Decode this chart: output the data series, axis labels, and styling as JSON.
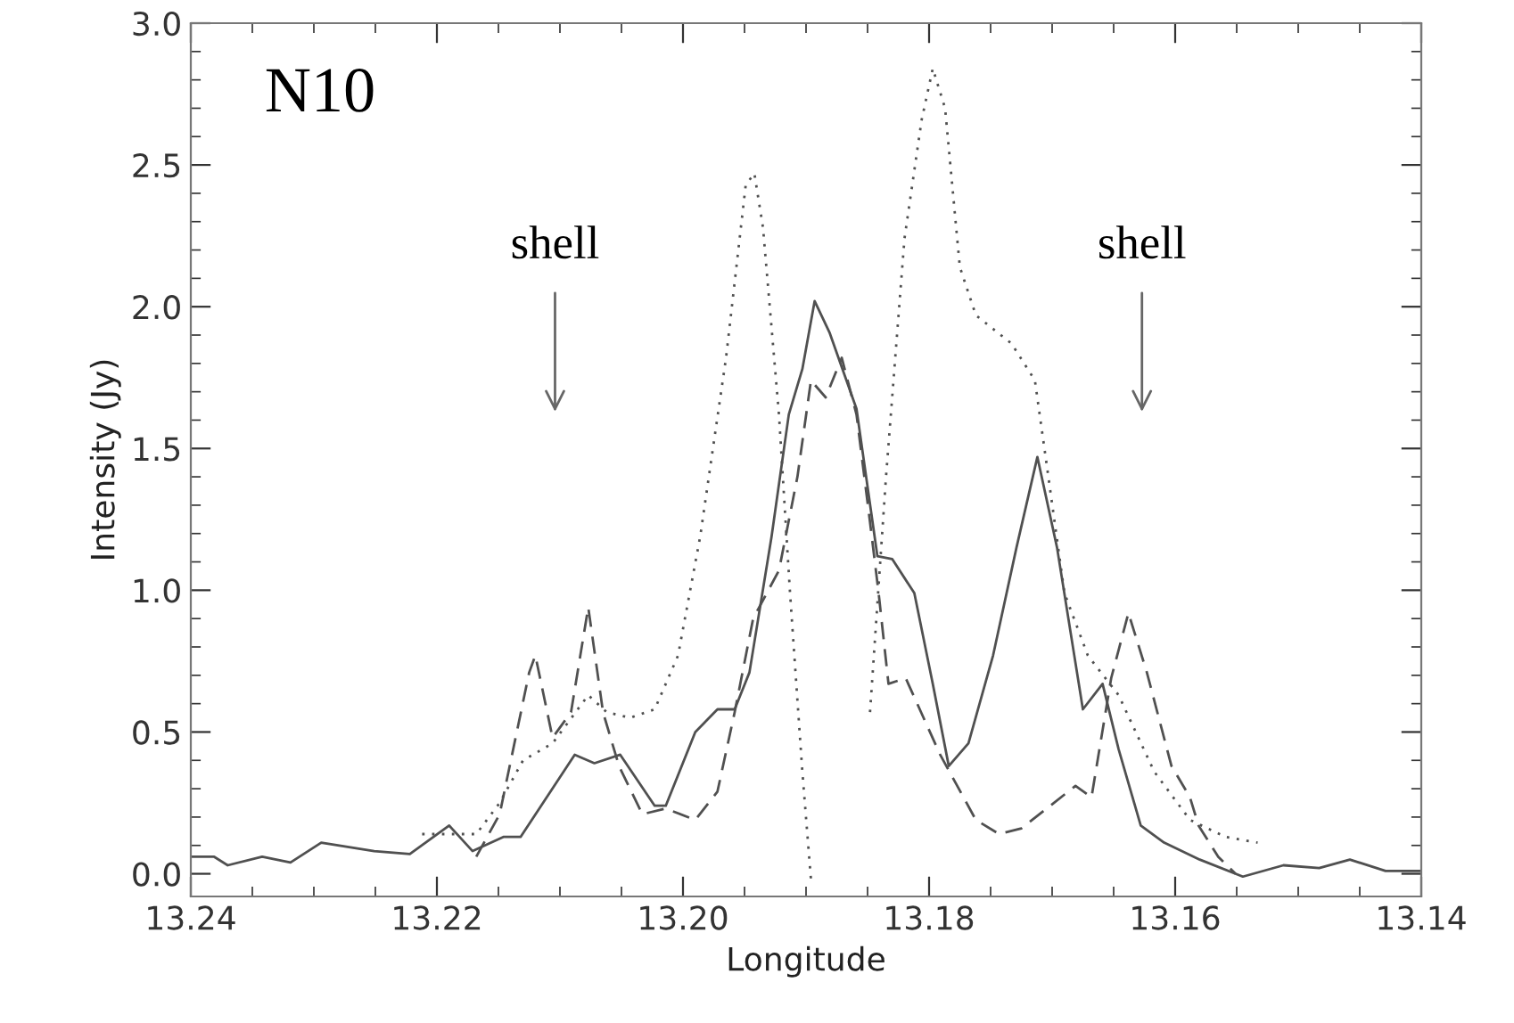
{
  "chart_data": {
    "type": "line",
    "xlabel": "Longitude",
    "ylabel": "Intensity (Jy)",
    "xlim": [
      13.24,
      13.14
    ],
    "ylim": [
      -0.08,
      3.0
    ],
    "xticks": [
      13.24,
      13.22,
      {
        "value": 13.2,
        "label": "13.20"
      },
      13.18,
      13.16,
      13.14
    ],
    "yticks": [
      {
        "value": 0,
        "label": "0.0"
      },
      0.5,
      {
        "value": 1,
        "label": "1.0"
      },
      1.5,
      {
        "value": 2,
        "label": "2.0"
      },
      2.5,
      {
        "value": 3,
        "label": "3.0"
      }
    ],
    "grid": false,
    "legend": false,
    "marker": "none",
    "annotations": [
      "N10",
      "shell",
      "shell"
    ],
    "series": [
      {
        "color": "#505050",
        "line_style": "solid",
        "x": [
          13.24,
          13.2381,
          13.237,
          13.2342,
          13.2319,
          13.2294,
          13.2251,
          13.2222,
          13.219,
          13.2171,
          13.2146,
          13.2132,
          13.2088,
          13.2072,
          13.2051,
          13.2023,
          13.2014,
          13.199,
          13.1972,
          13.1958,
          13.1946,
          13.1928,
          13.1914,
          13.1903,
          13.1893,
          13.1881,
          13.1859,
          13.1842,
          13.183,
          13.1812,
          13.1797,
          13.1784,
          13.1768,
          13.1748,
          13.1729,
          13.1712,
          13.1696,
          13.1675,
          13.1659,
          13.1646,
          13.1628,
          13.1609,
          13.158,
          13.1545,
          13.1512,
          13.1483,
          13.1458,
          13.1429,
          13.14
        ],
        "values": [
          0.06,
          0.06,
          0.03,
          0.06,
          0.04,
          0.11,
          0.08,
          0.07,
          0.17,
          0.08,
          0.13,
          0.13,
          0.42,
          0.39,
          0.42,
          0.24,
          0.24,
          0.5,
          0.58,
          0.58,
          0.71,
          1.19,
          1.62,
          1.78,
          2.02,
          1.91,
          1.64,
          1.12,
          1.11,
          0.99,
          0.67,
          0.38,
          0.46,
          0.77,
          1.15,
          1.47,
          1.15,
          0.58,
          0.67,
          0.44,
          0.17,
          0.11,
          0.05,
          -0.01,
          0.03,
          0.02,
          0.05,
          0.01,
          0.01
        ]
      },
      {
        "color": "#505050",
        "line_style": "dashed",
        "x": [
          13.2168,
          13.2149,
          13.2125,
          13.212,
          13.2106,
          13.2091,
          13.2077,
          13.2065,
          13.2052,
          13.2033,
          13.2014,
          13.199,
          13.1972,
          13.1958,
          13.1943,
          13.1922,
          13.1907,
          13.1896,
          13.1884,
          13.1871,
          13.1859,
          13.1848,
          13.1841,
          13.1833,
          13.1819,
          13.1791,
          13.1762,
          13.1743,
          13.1725,
          13.1681,
          13.1668,
          13.1652,
          13.1638,
          13.1623,
          13.1603,
          13.1588,
          13.1581,
          13.1565,
          13.1551
        ],
        "values": [
          0.06,
          0.21,
          0.71,
          0.77,
          0.48,
          0.57,
          0.94,
          0.57,
          0.38,
          0.21,
          0.23,
          0.19,
          0.29,
          0.57,
          0.9,
          1.07,
          1.4,
          1.74,
          1.68,
          1.82,
          1.62,
          1.24,
          0.99,
          0.67,
          0.69,
          0.42,
          0.19,
          0.14,
          0.16,
          0.31,
          0.27,
          0.69,
          0.92,
          0.71,
          0.38,
          0.27,
          0.17,
          0.06,
          0.0
        ]
      },
      {
        "color": "#505050",
        "line_style": "dotted",
        "x": [
          13.2212,
          13.2168,
          13.2149,
          13.213,
          13.2106,
          13.2077,
          13.2062,
          13.2043,
          13.2023,
          13.2004,
          13.1986,
          13.1965,
          13.1949,
          13.1942,
          13.1935,
          13.1922,
          13.1913,
          13.1903,
          13.1896,
          13.1888,
          13.1855,
          13.1848,
          13.1835,
          13.182,
          13.1806,
          13.1797,
          13.1787,
          13.1775,
          13.1762,
          13.1733,
          13.1714,
          13.1704,
          13.169,
          13.1671,
          13.1646,
          13.1617,
          13.1588,
          13.1559,
          13.1533
        ],
        "values": [
          0.14,
          0.14,
          0.25,
          0.4,
          0.46,
          0.63,
          0.57,
          0.55,
          0.58,
          0.77,
          1.19,
          1.82,
          2.43,
          2.47,
          2.28,
          1.62,
          0.99,
          0.36,
          -0.02,
          null,
          null,
          0.57,
          1.4,
          2.24,
          2.66,
          2.84,
          2.7,
          2.14,
          1.97,
          1.87,
          1.74,
          1.43,
          0.99,
          0.77,
          0.63,
          0.36,
          0.19,
          0.13,
          0.11
        ]
      }
    ]
  }
}
